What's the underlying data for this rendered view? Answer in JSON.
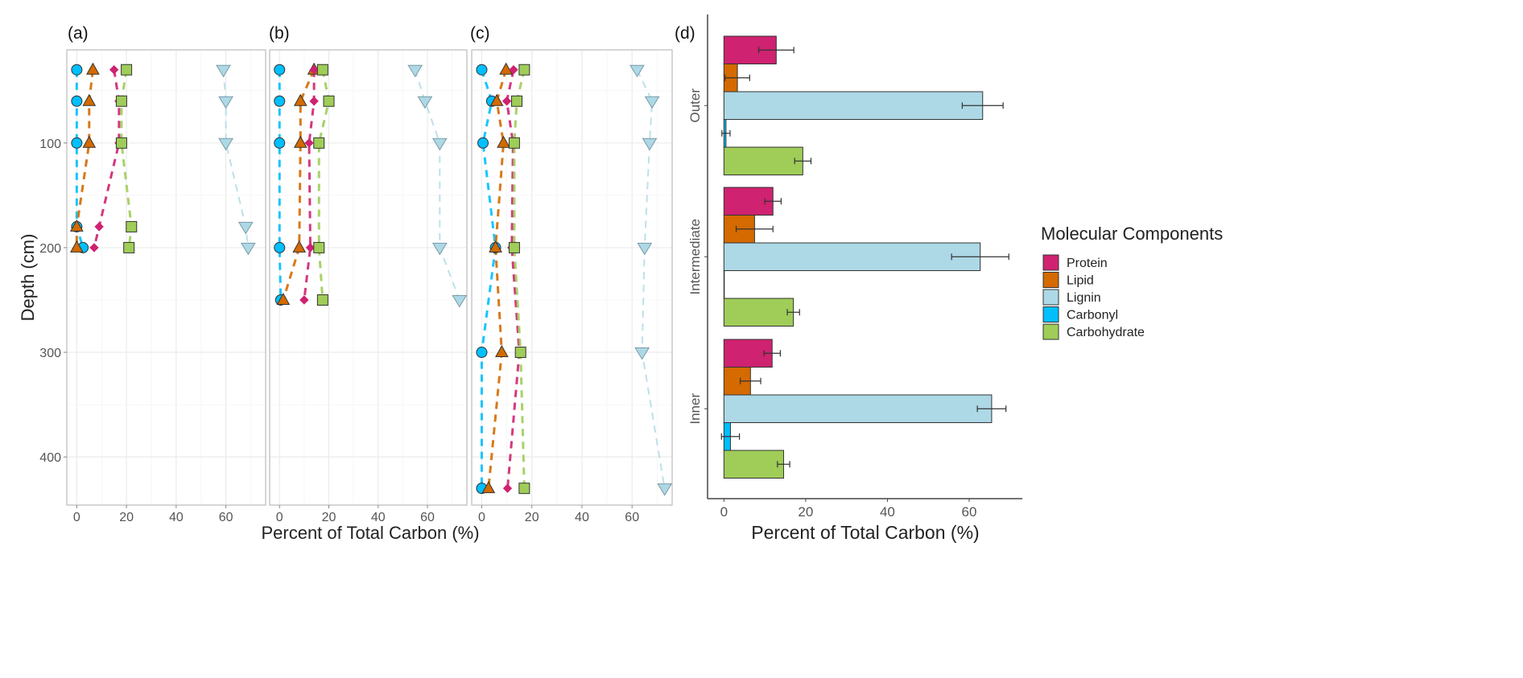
{
  "colors": {
    "Protein": "#cf2270",
    "Lipid": "#d46a00",
    "Lignin": "#add8e6",
    "Carbonyl": "#00bfff",
    "Carbohydrate": "#9fcd58"
  },
  "markers": {
    "Protein": "diamond",
    "Lipid": "triangle-up",
    "Lignin": "triangle-down",
    "Carbonyl": "circle",
    "Carbohydrate": "square"
  },
  "shared": {
    "ylabel": "Depth (cm)",
    "xlabel": "Percent of Total Carbon (%)"
  },
  "legend": {
    "title": "Molecular Components",
    "items": [
      "Protein",
      "Lipid",
      "Lignin",
      "Carbonyl",
      "Carbohydrate"
    ],
    "placement": "right"
  },
  "chart_data": [
    {
      "type": "line",
      "panel_label": "(a)",
      "xlim": [
        -4,
        76
      ],
      "ylim": [
        446,
        11
      ],
      "y_reversed": true,
      "xticks": [
        0,
        20,
        40,
        60
      ],
      "yticks": [
        100,
        200,
        300,
        400
      ],
      "grid": true,
      "depth": [
        30,
        60,
        100,
        180,
        200
      ],
      "series": [
        {
          "name": "Protein",
          "values": [
            15,
            17,
            17,
            9,
            7
          ]
        },
        {
          "name": "Lipid",
          "values": [
            6.5,
            5,
            5,
            0,
            0
          ]
        },
        {
          "name": "Lignin",
          "values": [
            59,
            60,
            60,
            68,
            69
          ]
        },
        {
          "name": "Carbonyl",
          "values": [
            0,
            0,
            0,
            0,
            2.5
          ]
        },
        {
          "name": "Carbohydrate",
          "values": [
            20,
            18,
            18,
            22,
            21
          ]
        }
      ]
    },
    {
      "type": "line",
      "panel_label": "(b)",
      "xlim": [
        -4,
        76
      ],
      "ylim": [
        446,
        11
      ],
      "y_reversed": true,
      "xticks": [
        0,
        20,
        40,
        60
      ],
      "yticks": [
        100,
        200,
        300,
        400
      ],
      "grid": true,
      "depth": [
        30,
        60,
        100,
        200,
        250
      ],
      "series": [
        {
          "name": "Protein",
          "values": [
            14,
            14,
            12,
            12.5,
            10
          ]
        },
        {
          "name": "Lipid",
          "values": [
            14,
            8.5,
            8.5,
            8,
            1.5
          ]
        },
        {
          "name": "Lignin",
          "values": [
            55,
            59,
            65,
            65,
            73
          ]
        },
        {
          "name": "Carbonyl",
          "values": [
            0,
            0,
            0,
            0,
            0.5
          ]
        },
        {
          "name": "Carbohydrate",
          "values": [
            17.5,
            20,
            16,
            16,
            17.5
          ]
        }
      ]
    },
    {
      "type": "line",
      "panel_label": "(c)",
      "xlim": [
        -4,
        76
      ],
      "ylim": [
        446,
        11
      ],
      "y_reversed": true,
      "xticks": [
        0,
        20,
        40,
        60
      ],
      "yticks": [
        100,
        200,
        300,
        400
      ],
      "grid": true,
      "depth": [
        30,
        60,
        100,
        200,
        300,
        430
      ],
      "series": [
        {
          "name": "Protein",
          "values": [
            12.7,
            10,
            12.5,
            12,
            15,
            10.3
          ]
        },
        {
          "name": "Lipid",
          "values": [
            9.7,
            6,
            8.7,
            5.5,
            8,
            2.7
          ]
        },
        {
          "name": "Lignin",
          "values": [
            62,
            68,
            67,
            65,
            64,
            73
          ]
        },
        {
          "name": "Carbonyl",
          "values": [
            0,
            4,
            0.5,
            5.5,
            0,
            0
          ]
        },
        {
          "name": "Carbohydrate",
          "values": [
            17,
            14,
            13,
            13,
            15.5,
            17
          ]
        }
      ]
    },
    {
      "type": "bar",
      "orientation": "horizontal",
      "panel_label": "(d)",
      "xlabel": "Percent of Total Carbon (%)",
      "xlim": [
        -4,
        73
      ],
      "xticks": [
        0,
        20,
        40,
        60
      ],
      "grid": false,
      "categories": [
        "Outer",
        "Intermediate",
        "Inner"
      ],
      "series": [
        {
          "name": "Protein",
          "values": [
            12.8,
            12,
            11.8
          ],
          "errors": [
            4.3,
            2,
            2
          ]
        },
        {
          "name": "Lipid",
          "values": [
            3.3,
            7.5,
            6.5
          ],
          "errors": [
            3,
            4.5,
            2.5
          ]
        },
        {
          "name": "Lignin",
          "values": [
            63.3,
            62.7,
            65.5
          ],
          "errors": [
            5,
            7,
            3.5
          ]
        },
        {
          "name": "Carbonyl",
          "values": [
            0.5,
            0,
            1.6
          ],
          "errors": [
            1,
            0,
            2.2
          ]
        },
        {
          "name": "Carbohydrate",
          "values": [
            19.3,
            17,
            14.6
          ],
          "errors": [
            2,
            1.5,
            1.5
          ]
        }
      ]
    }
  ]
}
